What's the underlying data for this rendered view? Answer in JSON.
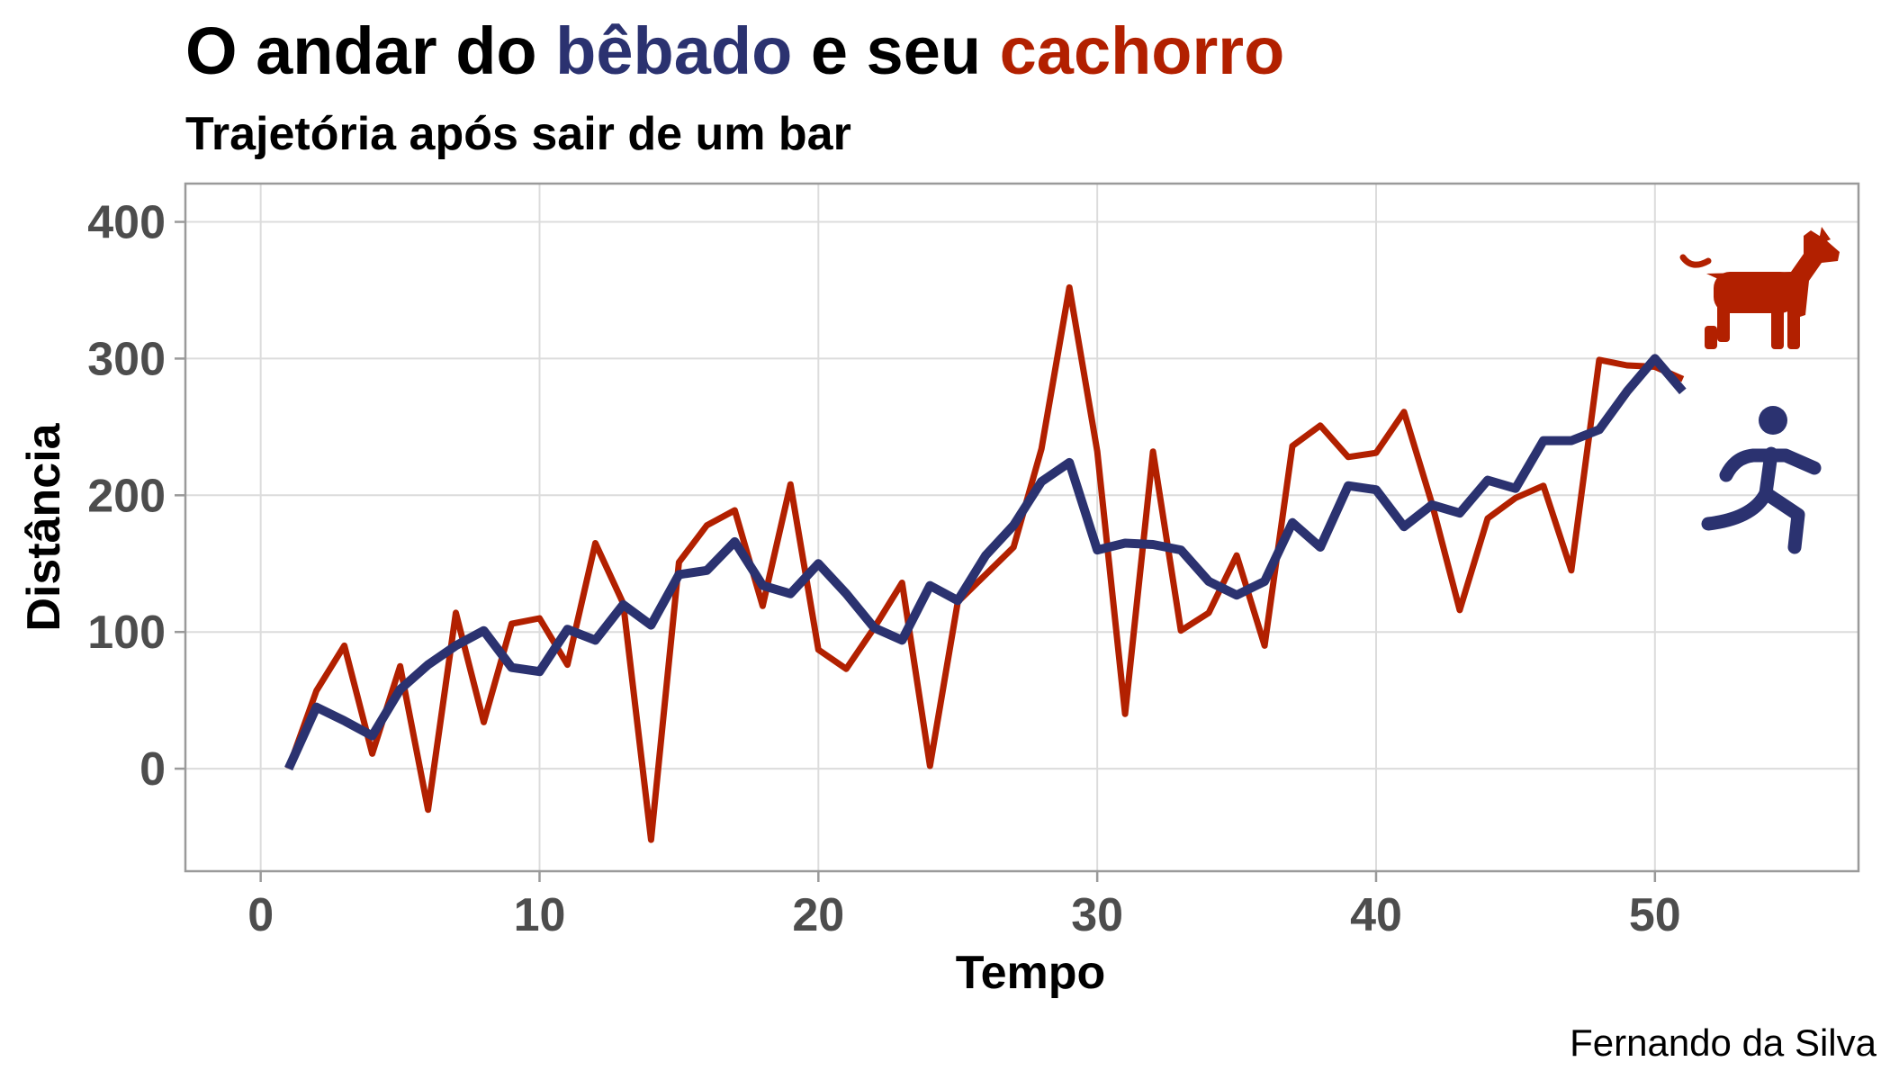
{
  "chart_data": {
    "type": "line",
    "title": {
      "parts": [
        {
          "text": "O andar do ",
          "color": "#000000"
        },
        {
          "text": "bêbado",
          "color": "#2b3270"
        },
        {
          "text": " e seu ",
          "color": "#000000"
        },
        {
          "text": "cachorro",
          "color": "#b22000"
        }
      ]
    },
    "subtitle": "Trajetória após sair de um bar",
    "xlabel": "Tempo",
    "ylabel": "Distância",
    "caption": "Fernando da Silva",
    "xlim": [
      -2.7,
      57.3
    ],
    "ylim": [
      -75,
      428
    ],
    "xticks": [
      0,
      10,
      20,
      30,
      40,
      50
    ],
    "yticks": [
      0,
      100,
      200,
      300,
      400
    ],
    "x": [
      1,
      2,
      3,
      4,
      5,
      6,
      7,
      8,
      9,
      10,
      11,
      12,
      13,
      14,
      15,
      16,
      17,
      18,
      19,
      20,
      21,
      22,
      23,
      24,
      25,
      26,
      27,
      28,
      29,
      30,
      31,
      32,
      33,
      34,
      35,
      36,
      37,
      38,
      39,
      40,
      41,
      42,
      43,
      44,
      45,
      46,
      47,
      48,
      49,
      50,
      51
    ],
    "series": [
      {
        "name": "cachorro",
        "color": "#b22000",
        "icon": "dog-icon",
        "values": [
          0,
          57,
          90,
          11,
          75,
          -30,
          114,
          34,
          106,
          110,
          76,
          165,
          121,
          -52,
          151,
          178,
          189,
          119,
          208,
          87,
          73,
          103,
          136,
          2,
          122,
          142,
          162,
          234,
          352,
          232,
          40,
          232,
          101,
          114,
          156,
          90,
          236,
          251,
          228,
          231,
          261,
          194,
          116,
          183,
          198,
          207,
          145,
          299,
          295,
          294,
          285
        ]
      },
      {
        "name": "bêbado",
        "color": "#2b3270",
        "icon": "running-person-icon",
        "values": [
          0,
          45,
          35,
          24,
          58,
          76,
          90,
          101,
          74,
          71,
          102,
          94,
          120,
          105,
          142,
          145,
          166,
          134,
          128,
          150,
          128,
          103,
          94,
          134,
          123,
          156,
          178,
          210,
          224,
          160,
          165,
          164,
          160,
          137,
          127,
          137,
          180,
          162,
          207,
          204,
          177,
          193,
          187,
          211,
          205,
          240,
          240,
          248,
          276,
          300,
          276
        ]
      }
    ]
  }
}
